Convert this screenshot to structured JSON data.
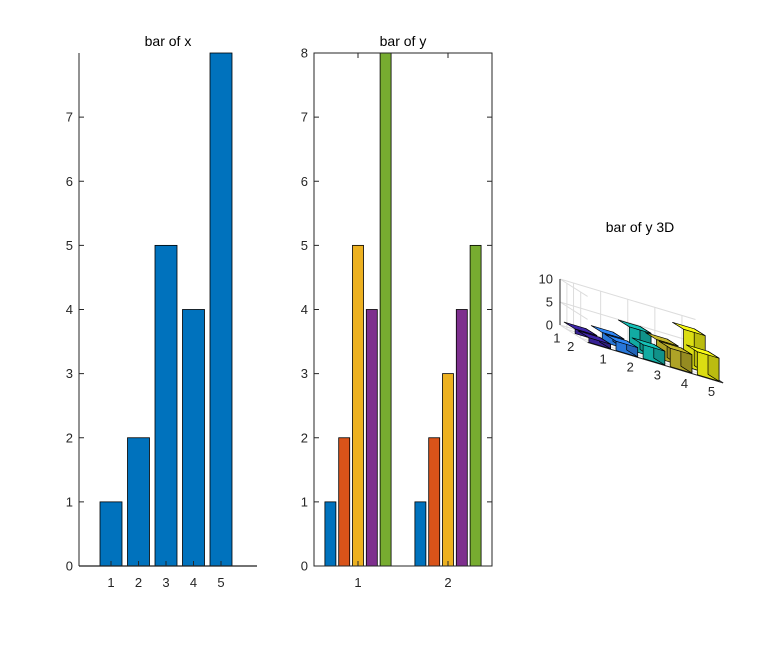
{
  "chart_data": [
    {
      "type": "bar",
      "title": "bar of x",
      "xlabel": "",
      "ylabel": "",
      "categories": [
        "1",
        "2",
        "3",
        "4",
        "5"
      ],
      "values": [
        1,
        2,
        5,
        4,
        8
      ],
      "ylim": [
        0,
        8
      ],
      "yticks": [
        "0",
        "1",
        "2",
        "3",
        "4",
        "5",
        "6",
        "7"
      ],
      "color": "#0072BD",
      "grid": false
    },
    {
      "type": "bar",
      "title": "bar of y",
      "xlabel": "",
      "ylabel": "",
      "categories": [
        "1",
        "2"
      ],
      "series": [
        {
          "values": [
            1,
            1
          ],
          "color": "#0072BD"
        },
        {
          "values": [
            2,
            2
          ],
          "color": "#D95319"
        },
        {
          "values": [
            5,
            3
          ],
          "color": "#EDB120"
        },
        {
          "values": [
            4,
            4
          ],
          "color": "#7E2F8E"
        },
        {
          "values": [
            8,
            5
          ],
          "color": "#77AC30"
        }
      ],
      "ylim": [
        0,
        8
      ],
      "yticks": [
        "0",
        "1",
        "2",
        "3",
        "4",
        "5",
        "6",
        "7",
        "8"
      ],
      "grid": false
    },
    {
      "type": "bar3",
      "title": "bar of y 3D",
      "rows": [
        "1",
        "2"
      ],
      "columns": [
        "1",
        "2",
        "3",
        "4",
        "5"
      ],
      "values": [
        [
          1,
          2,
          5,
          4,
          8
        ],
        [
          1,
          2,
          3,
          4,
          5
        ]
      ],
      "zlim": [
        0,
        10
      ],
      "zticks": [
        "0",
        "5",
        "10"
      ],
      "column_colors": [
        "#3E26A8",
        "#2E87F7",
        "#15C2B8",
        "#C7B92C",
        "#F9FB15"
      ],
      "grid": true
    }
  ]
}
